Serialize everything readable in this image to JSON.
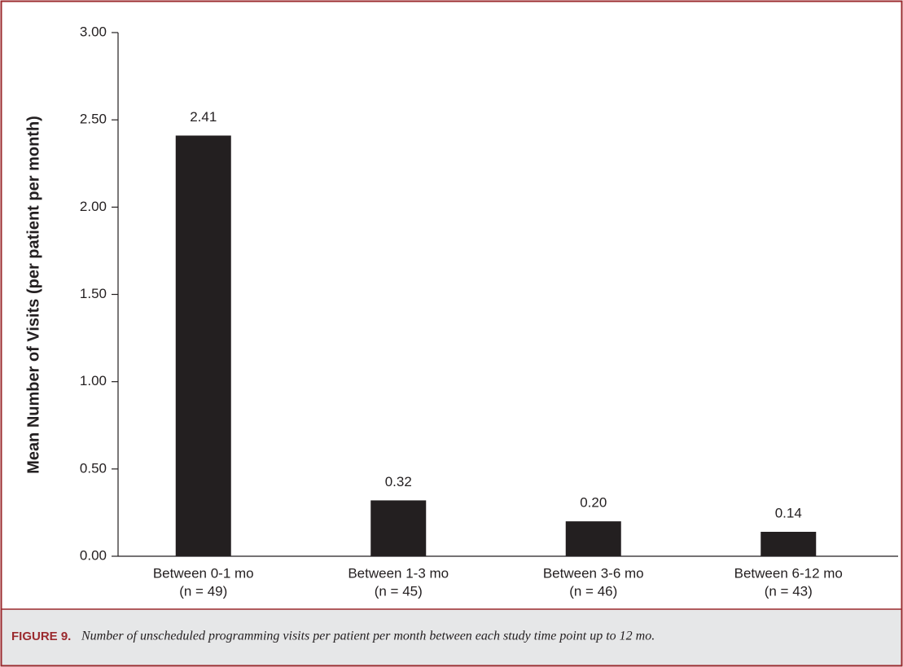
{
  "chart_data": {
    "type": "bar",
    "y_label": "Mean Number of Visits (per patient per month)",
    "categories": [
      "Between 0-1 mo",
      "Between 1-3 mo",
      "Between 3-6 mo",
      "Between 6-12 mo"
    ],
    "category_sublabels": [
      "(n = 49)",
      "(n = 45)",
      "(n = 46)",
      "(n = 43)"
    ],
    "values": [
      2.41,
      0.32,
      0.2,
      0.14
    ],
    "value_labels": [
      "2.41",
      "0.32",
      "0.20",
      "0.14"
    ],
    "color": "#231f20",
    "ylim": [
      0,
      3
    ],
    "yticks": [
      {
        "value": 0,
        "label": "0.00"
      },
      {
        "value": 0.5,
        "label": "0.50"
      },
      {
        "value": 1,
        "label": "1.00"
      },
      {
        "value": 1.5,
        "label": "1.50"
      },
      {
        "value": 2,
        "label": "2.00"
      },
      {
        "value": 2.5,
        "label": "2.50"
      },
      {
        "value": 3,
        "label": "3.00"
      }
    ],
    "grid": false,
    "caption_label": "FIGURE 9.",
    "caption": "Number of unscheduled programming visits per patient per month between each study time point up to 12 mo."
  }
}
